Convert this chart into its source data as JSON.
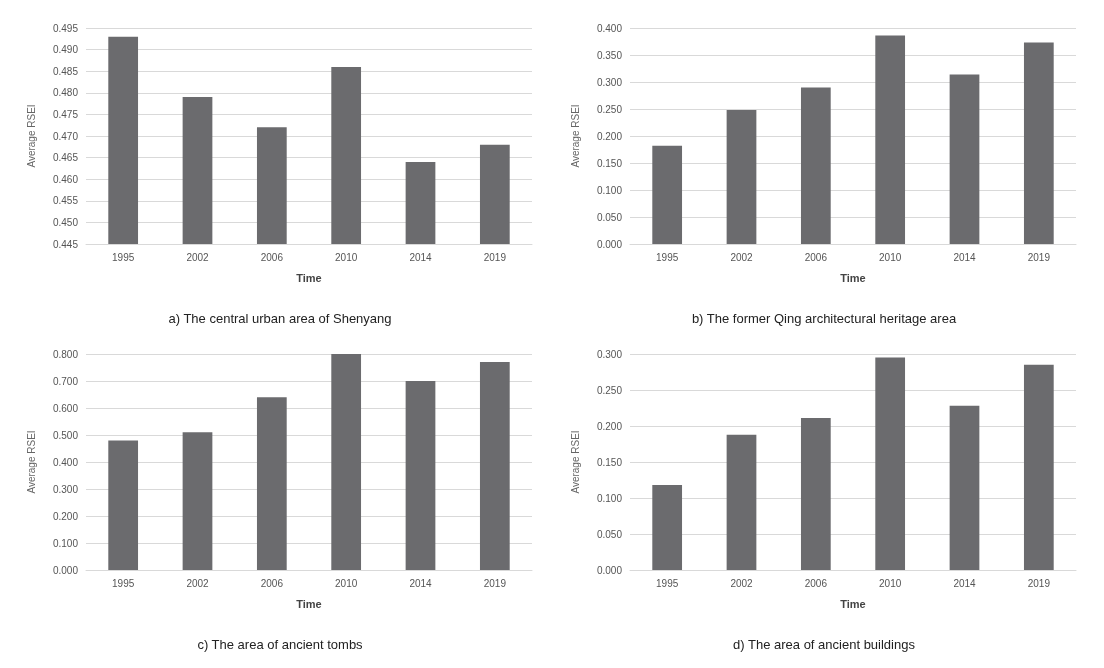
{
  "chart_data": [
    {
      "type": "bar",
      "title": "a) The central urban area of Shenyang",
      "xlabel": "Time",
      "ylabel": "Average RSEI",
      "categories": [
        "1995",
        "2002",
        "2006",
        "2010",
        "2014",
        "2019"
      ],
      "values": [
        0.493,
        0.479,
        0.472,
        0.486,
        0.464,
        0.468
      ],
      "color": "#6b6b6e",
      "ylim": [
        0.445,
        0.495
      ],
      "yticks": [
        {
          "value": 0.445,
          "label": "0.445"
        },
        {
          "value": 0.45,
          "label": "0.450"
        },
        {
          "value": 0.455,
          "label": "0.455"
        },
        {
          "value": 0.46,
          "label": "0.460"
        },
        {
          "value": 0.465,
          "label": "0.465"
        },
        {
          "value": 0.47,
          "label": "0.470"
        },
        {
          "value": 0.475,
          "label": "0.475"
        },
        {
          "value": 0.48,
          "label": "0.480"
        },
        {
          "value": 0.485,
          "label": "0.485"
        },
        {
          "value": 0.49,
          "label": "0.490"
        },
        {
          "value": 0.495,
          "label": "0.495"
        }
      ],
      "grid": "y"
    },
    {
      "type": "bar",
      "title": "b) The former Qing architectural heritage area",
      "xlabel": "Time",
      "ylabel": "Average RSEI",
      "categories": [
        "1995",
        "2002",
        "2006",
        "2010",
        "2014",
        "2019"
      ],
      "values": [
        0.182,
        0.248,
        0.29,
        0.386,
        0.314,
        0.373
      ],
      "color": "#6b6b6e",
      "ylim": [
        0,
        0.4
      ],
      "yticks": [
        {
          "value": 0,
          "label": "0.000"
        },
        {
          "value": 0.05,
          "label": "0.050"
        },
        {
          "value": 0.1,
          "label": "0.100"
        },
        {
          "value": 0.15,
          "label": "0.150"
        },
        {
          "value": 0.2,
          "label": "0.200"
        },
        {
          "value": 0.25,
          "label": "0.250"
        },
        {
          "value": 0.3,
          "label": "0.300"
        },
        {
          "value": 0.35,
          "label": "0.350"
        },
        {
          "value": 0.4,
          "label": "0.400"
        }
      ],
      "grid": "y"
    },
    {
      "type": "bar",
      "title": "c) The area of ancient tombs",
      "xlabel": "Time",
      "ylabel": "Average RSEI",
      "categories": [
        "1995",
        "2002",
        "2006",
        "2010",
        "2014",
        "2019"
      ],
      "values": [
        0.48,
        0.51,
        0.64,
        0.8,
        0.7,
        0.77
      ],
      "color": "#6b6b6e",
      "ylim": [
        0,
        0.8
      ],
      "yticks": [
        {
          "value": 0,
          "label": "0.000"
        },
        {
          "value": 0.1,
          "label": "0.100"
        },
        {
          "value": 0.2,
          "label": "0.200"
        },
        {
          "value": 0.3,
          "label": "0.300"
        },
        {
          "value": 0.4,
          "label": "0.400"
        },
        {
          "value": 0.5,
          "label": "0.500"
        },
        {
          "value": 0.6,
          "label": "0.600"
        },
        {
          "value": 0.7,
          "label": "0.700"
        },
        {
          "value": 0.8,
          "label": "0.800"
        }
      ],
      "grid": "y"
    },
    {
      "type": "bar",
      "title": "d) The area of ancient buildings",
      "xlabel": "Time",
      "ylabel": "Average RSEI",
      "categories": [
        "1995",
        "2002",
        "2006",
        "2010",
        "2014",
        "2019"
      ],
      "values": [
        0.118,
        0.188,
        0.211,
        0.295,
        0.228,
        0.285
      ],
      "color": "#6b6b6e",
      "ylim": [
        0,
        0.3
      ],
      "yticks": [
        {
          "value": 0,
          "label": "0.000"
        },
        {
          "value": 0.05,
          "label": "0.050"
        },
        {
          "value": 0.1,
          "label": "0.100"
        },
        {
          "value": 0.15,
          "label": "0.150"
        },
        {
          "value": 0.2,
          "label": "0.200"
        },
        {
          "value": 0.25,
          "label": "0.250"
        },
        {
          "value": 0.3,
          "label": "0.300"
        }
      ],
      "grid": "y"
    }
  ]
}
